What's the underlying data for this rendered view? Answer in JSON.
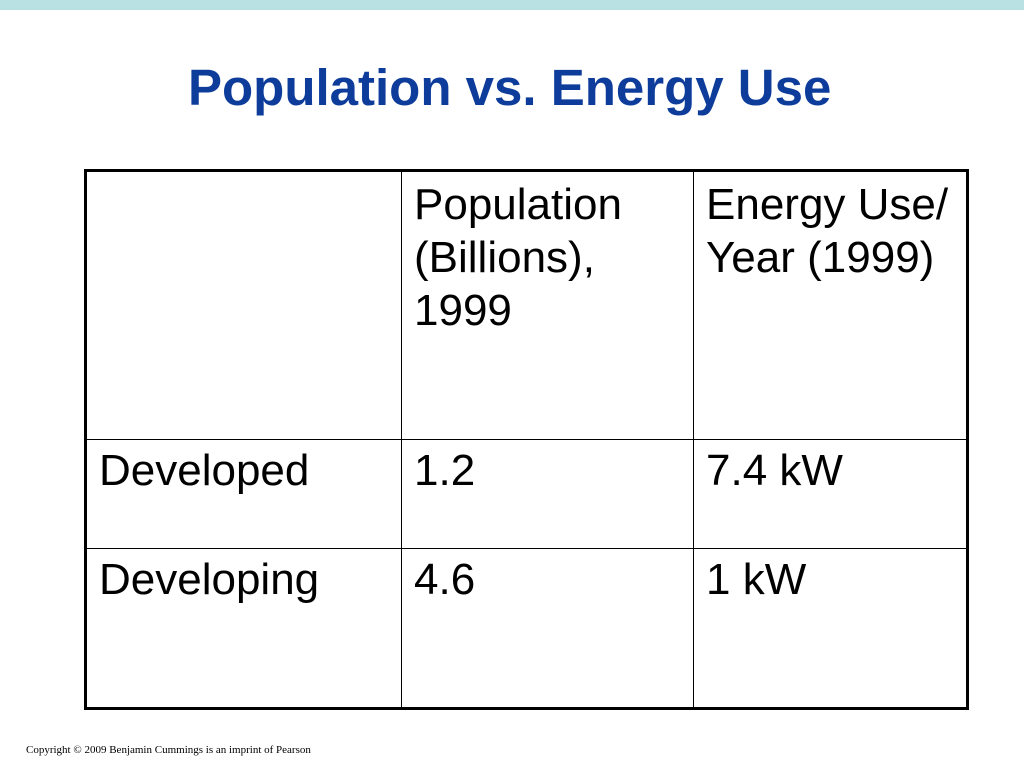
{
  "slide": {
    "title": "Population vs. Energy Use"
  },
  "table": {
    "corner": "",
    "headers": [
      "Population (Billions), 1999",
      "Energy Use/ Year (1999)"
    ],
    "rows": [
      {
        "label": "Developed",
        "population": "1.2",
        "energy": "7.4 kW"
      },
      {
        "label": "Developing",
        "population": "4.6",
        "energy": "1 kW"
      }
    ]
  },
  "footer": {
    "copyright": "Copyright © 2009 Benjamin Cummings is an imprint of Pearson"
  },
  "colors": {
    "title": "#0d3c9b",
    "top_band": "#b9e0e2",
    "text": "#000000",
    "background": "#ffffff"
  }
}
